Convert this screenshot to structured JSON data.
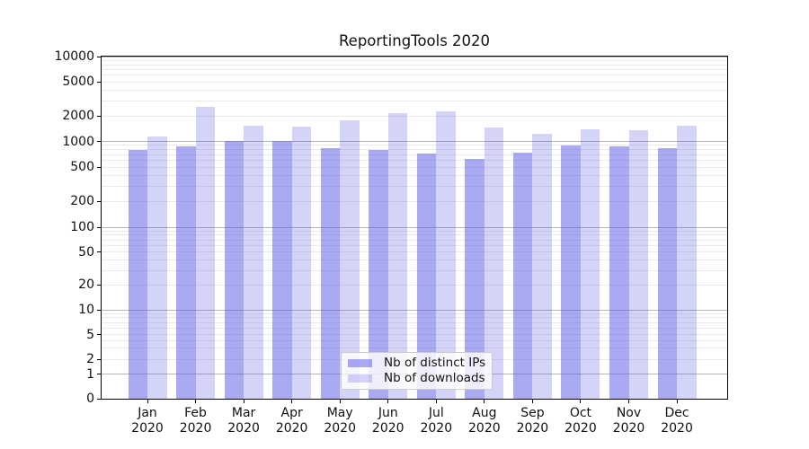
{
  "chart_data": {
    "type": "bar",
    "title": "ReportingTools 2020",
    "categories": [
      "Jan",
      "Feb",
      "Mar",
      "Apr",
      "May",
      "Jun",
      "Jul",
      "Aug",
      "Sep",
      "Oct",
      "Nov",
      "Dec"
    ],
    "x_year_label": "2020",
    "series": [
      {
        "name": "Nb of distinct IPs",
        "color": "rgba(85,85,230,0.5)",
        "color_hex_on_white": "#aaaaf2",
        "values": [
          800,
          870,
          1010,
          1010,
          840,
          800,
          730,
          620,
          740,
          900,
          870,
          825
        ]
      },
      {
        "name": "Nb of downloads",
        "color": "rgba(85,85,230,0.25)",
        "color_hex_on_white": "#d4d4f9",
        "values": [
          1150,
          2550,
          1520,
          1500,
          1780,
          2180,
          2250,
          1470,
          1230,
          1380,
          1350,
          1550
        ]
      }
    ],
    "yscale": "symlog",
    "ylim": [
      0,
      10000
    ],
    "yticks": [
      0,
      1,
      2,
      5,
      10,
      20,
      50,
      100,
      200,
      500,
      1000,
      2000,
      5000,
      10000
    ],
    "grid": "horizontal, major at powers of 10, log minors 2-9 per decade",
    "legend_position": "lower center",
    "colors": {
      "major_gridline": "#b5b5b5",
      "minor_gridline": "#eaeaea",
      "axis": "#000000",
      "background": "#ffffff"
    }
  }
}
